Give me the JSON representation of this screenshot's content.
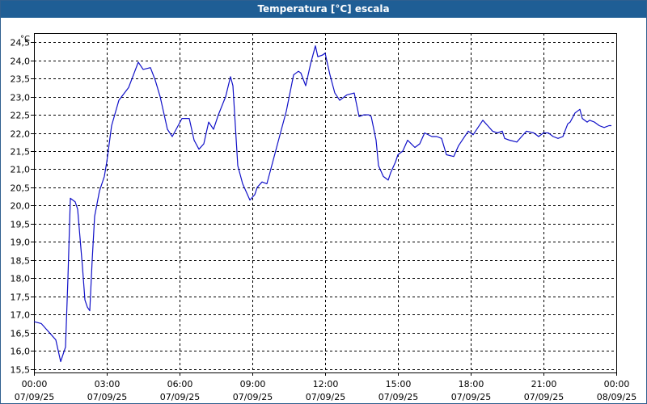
{
  "window": {
    "title": "Temperatura [°C] escala"
  },
  "colors": {
    "titlebar": "#1f5e95",
    "line": "#1010c8",
    "grid": "#000000",
    "background": "#ffffff"
  },
  "chart_data": {
    "type": "line",
    "title": "Temperatura [°C] escala",
    "unit_label": "°C",
    "xlabel": "",
    "ylabel": "",
    "grid": true,
    "legend": "none",
    "xlim": [
      0,
      24
    ],
    "ylim": [
      15.4,
      24.75
    ],
    "y_ticks": [
      "15,5",
      "16,0",
      "16,5",
      "17,0",
      "17,5",
      "18,0",
      "18,5",
      "19,0",
      "19,5",
      "20,0",
      "20,5",
      "21,0",
      "21,5",
      "22,0",
      "22,5",
      "23,0",
      "23,5",
      "24,0",
      "24,5"
    ],
    "y_tick_values": [
      15.5,
      16.0,
      16.5,
      17.0,
      17.5,
      18.0,
      18.5,
      19.0,
      19.5,
      20.0,
      20.5,
      21.0,
      21.5,
      22.0,
      22.5,
      23.0,
      23.5,
      24.0,
      24.5
    ],
    "x_ticks": [
      {
        "time": "00:00",
        "date": "07/09/25"
      },
      {
        "time": "03:00",
        "date": "07/09/25"
      },
      {
        "time": "06:00",
        "date": "07/09/25"
      },
      {
        "time": "09:00",
        "date": "07/09/25"
      },
      {
        "time": "12:00",
        "date": "07/09/25"
      },
      {
        "time": "15:00",
        "date": "07/09/25"
      },
      {
        "time": "18:00",
        "date": "07/09/25"
      },
      {
        "time": "21:00",
        "date": "07/09/25"
      },
      {
        "time": "00:00",
        "date": "08/09/25"
      }
    ],
    "series": [
      {
        "x": [
          0.0,
          0.3,
          0.5,
          0.7,
          0.9,
          1.1,
          1.3,
          1.4,
          1.5,
          1.7,
          1.8,
          2.0,
          2.1,
          2.2,
          2.3,
          2.4,
          2.5,
          2.7,
          2.9,
          3.0,
          3.2,
          3.5,
          3.9,
          4.1,
          4.3,
          4.5,
          4.8,
          5.0,
          5.2,
          5.5,
          5.7,
          6.1,
          6.4,
          6.6,
          6.8,
          7.0,
          7.2,
          7.4,
          7.6,
          7.9,
          8.1,
          8.2,
          8.4,
          8.6,
          8.9,
          9.1,
          9.2,
          9.4,
          9.6,
          9.8,
          10.0,
          10.2,
          10.4,
          10.7,
          10.9,
          11.0,
          11.2,
          11.4,
          11.6,
          11.7,
          11.9,
          12.0,
          12.2,
          12.4,
          12.6,
          12.9,
          13.2,
          13.4,
          13.6,
          13.8,
          13.9,
          14.1,
          14.2,
          14.4,
          14.6,
          14.7,
          14.9,
          15.0,
          15.2,
          15.4,
          15.7,
          15.9,
          16.1,
          16.4,
          16.6,
          16.8,
          17.0,
          17.3,
          17.5,
          17.6,
          17.8,
          17.9,
          18.1,
          18.3,
          18.5,
          18.7,
          18.9,
          19.1,
          19.3,
          19.4,
          19.6,
          19.9,
          20.1,
          20.3,
          20.6,
          20.8,
          21.0,
          21.2,
          21.4,
          21.6,
          21.8,
          22.0,
          22.1,
          22.3,
          22.5,
          22.6,
          22.8,
          22.9,
          23.1,
          23.3,
          23.5,
          23.7,
          23.8
        ],
        "y": [
          16.8,
          16.75,
          16.6,
          16.45,
          16.3,
          15.7,
          16.1,
          18.0,
          20.2,
          20.1,
          19.9,
          18.3,
          17.4,
          17.2,
          17.1,
          18.5,
          19.7,
          20.4,
          20.8,
          21.2,
          22.2,
          22.9,
          23.25,
          23.6,
          23.95,
          23.75,
          23.8,
          23.45,
          23.0,
          22.1,
          21.9,
          22.4,
          22.4,
          21.8,
          21.55,
          21.7,
          22.3,
          22.1,
          22.5,
          23.0,
          23.55,
          23.3,
          21.1,
          20.6,
          20.15,
          20.3,
          20.5,
          20.65,
          20.6,
          21.1,
          21.6,
          22.1,
          22.6,
          23.6,
          23.7,
          23.65,
          23.3,
          23.9,
          24.4,
          24.1,
          24.15,
          24.2,
          23.6,
          23.1,
          22.9,
          23.05,
          23.1,
          22.45,
          22.5,
          22.5,
          22.45,
          21.8,
          21.1,
          20.8,
          20.7,
          20.9,
          21.2,
          21.4,
          21.5,
          21.8,
          21.6,
          21.7,
          22.0,
          21.9,
          21.9,
          21.85,
          21.4,
          21.35,
          21.65,
          21.75,
          21.95,
          22.05,
          21.95,
          22.15,
          22.35,
          22.2,
          22.05,
          22.0,
          22.05,
          21.85,
          21.8,
          21.75,
          21.9,
          22.05,
          22.0,
          21.9,
          22.0,
          22.0,
          21.9,
          21.85,
          21.9,
          22.25,
          22.3,
          22.55,
          22.65,
          22.4,
          22.3,
          22.35,
          22.3,
          22.2,
          22.15,
          22.2,
          22.2
        ]
      }
    ]
  }
}
